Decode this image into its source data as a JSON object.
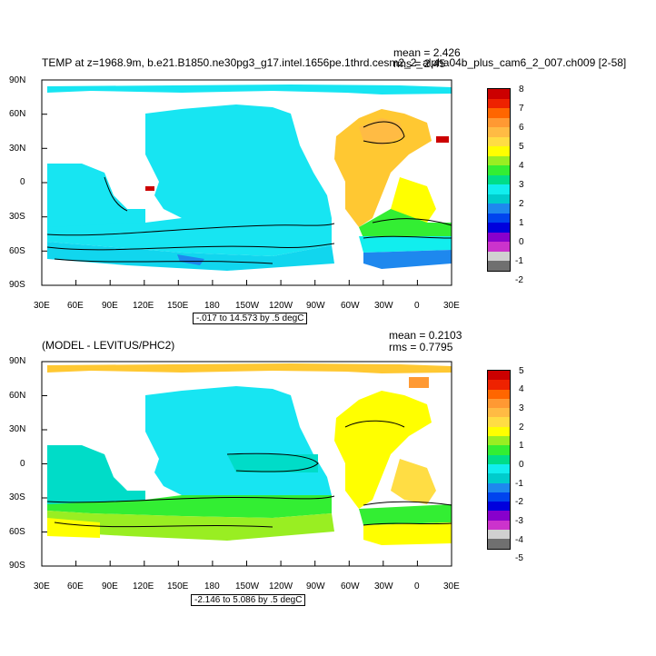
{
  "colors": {
    "ocean_blue": "#1a8cff",
    "cyan": "#17e5f2",
    "teal": "#00dcc8",
    "green": "#33ee33",
    "yellow": "#ffff00",
    "light_orange": "#ffc832",
    "orange": "#ff9900",
    "red": "#e60000",
    "land": "#ffffff"
  },
  "colorbar_colors": [
    "#707070",
    "#d0d0d0",
    "#cc33cc",
    "#8800cc",
    "#0000dd",
    "#0044ee",
    "#1e88ee",
    "#00cccc",
    "#11eeee",
    "#00dd88",
    "#33ee33",
    "#99ee22",
    "#ffff00",
    "#ffdd44",
    "#ffbb44",
    "#ff9933",
    "#ff6600",
    "#ee2200",
    "#cc0000"
  ],
  "x_ticks": [
    "30E",
    "60E",
    "90E",
    "120E",
    "150E",
    "180",
    "150W",
    "120W",
    "90W",
    "60W",
    "30W",
    "0",
    "30E"
  ],
  "y_ticks": [
    "90N",
    "60N",
    "30N",
    "0",
    "30S",
    "60S",
    "90S"
  ],
  "panel1": {
    "title": "TEMP at z=1968.9m, b.e21.B1850.ne30pg3_g17.intel.1656pe.1thrd.cesm2_2_alpha04b_plus_cam6_2_007.ch009 [2-58]",
    "mean": "mean = 2.426",
    "rms": "rms = 2.45",
    "range": "-.017 to 14.573 by .5 degC",
    "colorbar_labels": [
      "8",
      "7",
      "6",
      "5",
      "4",
      "3",
      "2",
      "1",
      "0",
      "-1",
      "-2"
    ]
  },
  "panel2": {
    "title": "(MODEL - LEVITUS/PHC2)",
    "mean": "mean = 0.2103",
    "rms": "rms = 0.7795",
    "range": "-2.146 to 5.086 by .5 degC",
    "colorbar_labels": [
      "5",
      "4",
      "3",
      "2",
      "1",
      "0",
      "-1",
      "-2",
      "-3",
      "-4",
      "-5"
    ]
  }
}
